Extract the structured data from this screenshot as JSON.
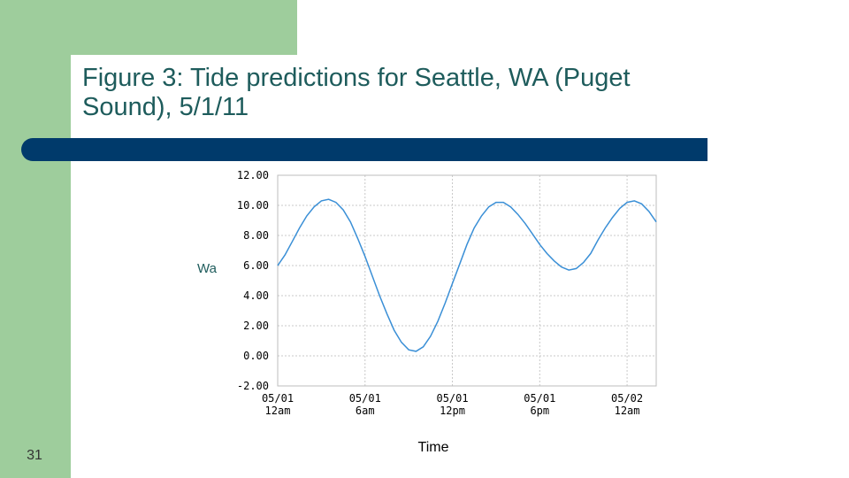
{
  "slide": {
    "title": "Figure 3: Tide predictions for Seattle, WA (Puget Sound), 5/1/11",
    "slide_number": "31",
    "colors": {
      "green": "#9ecd9c",
      "blue_bar": "#003a6b",
      "title": "#1e5c5c",
      "line": "#3a8fd6"
    }
  },
  "chart_data": {
    "type": "line",
    "title": "",
    "xlabel": "Time",
    "ylabel": "Water Level (ft)",
    "ylim": [
      -2,
      12
    ],
    "xlim_hours": [
      0,
      26
    ],
    "grid": true,
    "y_ticks": [
      "12.00",
      "10.00",
      "8.00",
      "6.00",
      "4.00",
      "2.00",
      "0.00",
      "-2.00"
    ],
    "x_ticks": [
      {
        "hour": 0,
        "date": "05/01",
        "time": "12am"
      },
      {
        "hour": 6,
        "date": "05/01",
        "time": "6am"
      },
      {
        "hour": 12,
        "date": "05/01",
        "time": "12pm"
      },
      {
        "hour": 18,
        "date": "05/01",
        "time": "6pm"
      },
      {
        "hour": 24,
        "date": "05/02",
        "time": "12am"
      }
    ],
    "series": [
      {
        "x": [
          0,
          0.5,
          1,
          1.5,
          2,
          2.5,
          3,
          3.5,
          4,
          4.5,
          5,
          5.5,
          6,
          6.5,
          7,
          7.5,
          8,
          8.5,
          9,
          9.5,
          10,
          10.5,
          11,
          11.5,
          12,
          12.5,
          13,
          13.5,
          14,
          14.5,
          15,
          15.5,
          16,
          16.5,
          17,
          17.5,
          18,
          18.5,
          19,
          19.5,
          20,
          20.5,
          21,
          21.5,
          22,
          22.5,
          23,
          23.5,
          24,
          24.5,
          25,
          25.5,
          26
        ],
        "values": [
          6.0,
          6.7,
          7.6,
          8.5,
          9.3,
          9.9,
          10.3,
          10.4,
          10.2,
          9.7,
          8.9,
          7.8,
          6.6,
          5.3,
          4.0,
          2.8,
          1.7,
          0.9,
          0.4,
          0.3,
          0.6,
          1.3,
          2.3,
          3.5,
          4.8,
          6.1,
          7.4,
          8.5,
          9.3,
          9.9,
          10.2,
          10.2,
          9.9,
          9.4,
          8.8,
          8.1,
          7.4,
          6.8,
          6.3,
          5.9,
          5.7,
          5.8,
          6.2,
          6.8,
          7.7,
          8.5,
          9.2,
          9.8,
          10.2,
          10.3,
          10.1,
          9.6,
          8.9
        ]
      }
    ]
  }
}
